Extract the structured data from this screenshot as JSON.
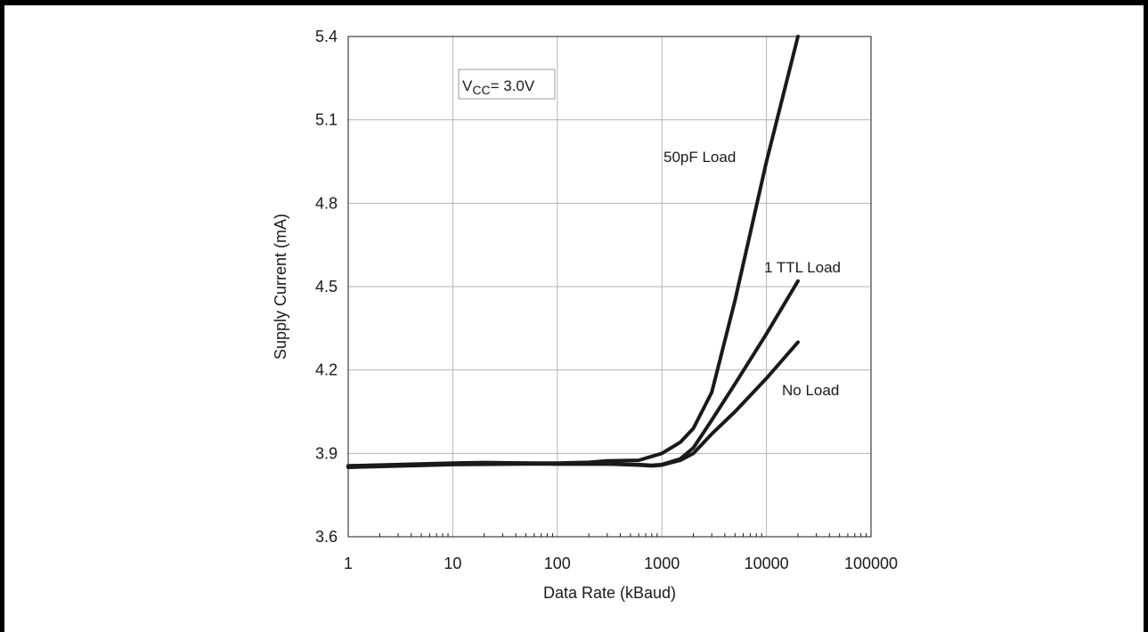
{
  "chart_data": {
    "type": "line",
    "xscale": "log",
    "xlim": [
      1,
      100000
    ],
    "ylim": [
      3.6,
      5.4
    ],
    "xlabel": "Data Rate (kBaud)",
    "ylabel": "Supply Current (mA)",
    "x_ticks": [
      "1",
      "10",
      "100",
      "1000",
      "10000",
      "100000"
    ],
    "y_ticks": [
      "3.6",
      "3.9",
      "4.2",
      "4.5",
      "4.8",
      "5.1",
      "5.4"
    ],
    "grid": true,
    "annotation": {
      "main": "V",
      "sub": "CC",
      "rest": "= 3.0V"
    },
    "series": [
      {
        "name": "50pF Load",
        "points": [
          [
            1,
            3.855
          ],
          [
            10,
            3.865
          ],
          [
            20,
            3.867
          ],
          [
            50,
            3.865
          ],
          [
            100,
            3.865
          ],
          [
            200,
            3.868
          ],
          [
            300,
            3.873
          ],
          [
            600,
            3.875
          ],
          [
            1000,
            3.9
          ],
          [
            1500,
            3.94
          ],
          [
            2000,
            3.99
          ],
          [
            3000,
            4.12
          ],
          [
            5000,
            4.45
          ],
          [
            10000,
            4.95
          ],
          [
            20000,
            5.4
          ]
        ],
        "label_text": "50pF Load"
      },
      {
        "name": "1 TTL Load",
        "points": [
          [
            1,
            3.855
          ],
          [
            10,
            3.862
          ],
          [
            50,
            3.865
          ],
          [
            100,
            3.862
          ],
          [
            300,
            3.862
          ],
          [
            600,
            3.86
          ],
          [
            800,
            3.857
          ],
          [
            1000,
            3.86
          ],
          [
            1500,
            3.88
          ],
          [
            2000,
            3.92
          ],
          [
            3000,
            4.02
          ],
          [
            5000,
            4.15
          ],
          [
            10000,
            4.33
          ],
          [
            20000,
            4.52
          ]
        ],
        "label_text": "1 TTL Load"
      },
      {
        "name": "No Load",
        "points": [
          [
            1,
            3.85
          ],
          [
            10,
            3.86
          ],
          [
            50,
            3.862
          ],
          [
            100,
            3.862
          ],
          [
            300,
            3.862
          ],
          [
            600,
            3.858
          ],
          [
            800,
            3.855
          ],
          [
            1000,
            3.858
          ],
          [
            1500,
            3.875
          ],
          [
            2000,
            3.9
          ],
          [
            3000,
            3.97
          ],
          [
            5000,
            4.05
          ],
          [
            10000,
            4.17
          ],
          [
            20000,
            4.3
          ]
        ],
        "label_text": "No Load"
      }
    ]
  }
}
